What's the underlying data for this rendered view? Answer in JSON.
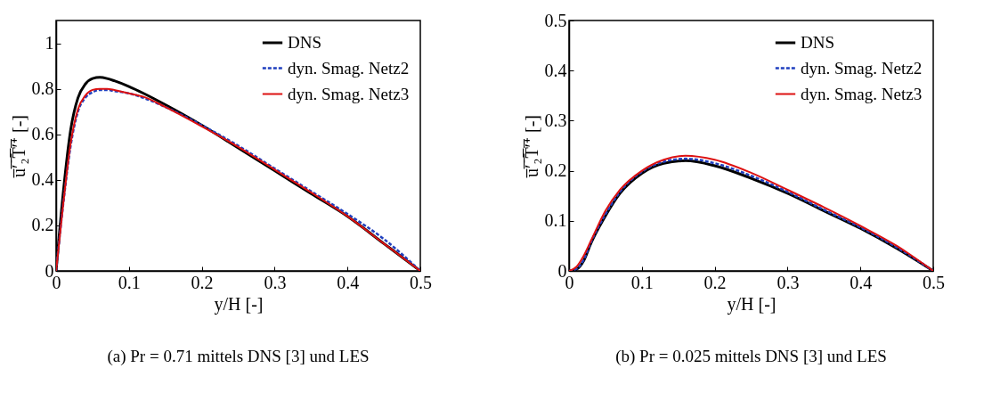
{
  "chart_data": [
    {
      "type": "line",
      "xlabel": "y/H [-]",
      "ylabel": "u̅′̅₂̅T̅′̅⁺ [-]",
      "annotations": [
        "(a) Pr = 0.71 mittels DNS [3] und LES"
      ],
      "x": [
        0,
        0.01,
        0.02,
        0.03,
        0.04,
        0.05,
        0.06,
        0.07,
        0.08,
        0.1,
        0.12,
        0.15,
        0.2,
        0.25,
        0.3,
        0.35,
        0.4,
        0.45,
        0.5
      ],
      "series": [
        {
          "name": "DNS",
          "color": "#000000",
          "line_style": "solid",
          "values": [
            0,
            0.35,
            0.62,
            0.76,
            0.82,
            0.845,
            0.85,
            0.845,
            0.835,
            0.81,
            0.78,
            0.73,
            0.64,
            0.54,
            0.44,
            0.34,
            0.24,
            0.12,
            0
          ]
        },
        {
          "name": "dyn. Smag. Netz2",
          "color": "#1f3fbf",
          "line_style": "dashed",
          "values": [
            0,
            0.3,
            0.55,
            0.7,
            0.76,
            0.785,
            0.795,
            0.795,
            0.79,
            0.78,
            0.76,
            0.72,
            0.64,
            0.55,
            0.45,
            0.35,
            0.25,
            0.14,
            0
          ]
        },
        {
          "name": "dyn. Smag. Netz3",
          "color": "#dd1111",
          "line_style": "solid",
          "values": [
            0,
            0.3,
            0.56,
            0.71,
            0.77,
            0.795,
            0.8,
            0.8,
            0.795,
            0.78,
            0.765,
            0.72,
            0.635,
            0.545,
            0.445,
            0.345,
            0.24,
            0.12,
            0
          ]
        }
      ],
      "xlim": [
        0,
        0.5
      ],
      "xticks": [
        0,
        0.1,
        0.2,
        0.3,
        0.4,
        0.5
      ],
      "ylim": [
        0,
        1.1
      ],
      "yticks": [
        0,
        0.2,
        0.4,
        0.6,
        0.8,
        1
      ],
      "grid": false,
      "legend": "top right",
      "marker": "none"
    },
    {
      "type": "line",
      "xlabel": "y/H [-]",
      "ylabel": "u̅′̅₂̅T̅′̅⁺ [-]",
      "annotations": [
        "(b) Pr = 0.025 mittels DNS [3] und LES"
      ],
      "x": [
        0,
        0.01,
        0.02,
        0.03,
        0.05,
        0.07,
        0.1,
        0.13,
        0.16,
        0.2,
        0.25,
        0.3,
        0.35,
        0.4,
        0.45,
        0.5
      ],
      "series": [
        {
          "name": "DNS",
          "color": "#000000",
          "line_style": "solid",
          "values": [
            0,
            0.003,
            0.02,
            0.055,
            0.11,
            0.155,
            0.195,
            0.215,
            0.22,
            0.21,
            0.185,
            0.155,
            0.12,
            0.085,
            0.045,
            0
          ]
        },
        {
          "name": "dyn. Smag. Netz2",
          "color": "#1f3fbf",
          "line_style": "dashed",
          "values": [
            0,
            0.004,
            0.022,
            0.057,
            0.113,
            0.158,
            0.198,
            0.218,
            0.224,
            0.215,
            0.19,
            0.158,
            0.122,
            0.087,
            0.047,
            0
          ]
        },
        {
          "name": "dyn. Smag. Netz3",
          "color": "#dd1111",
          "line_style": "solid",
          "values": [
            0,
            0.008,
            0.03,
            0.06,
            0.12,
            0.162,
            0.2,
            0.222,
            0.23,
            0.222,
            0.196,
            0.162,
            0.127,
            0.09,
            0.05,
            0
          ]
        }
      ],
      "xlim": [
        0,
        0.5
      ],
      "xticks": [
        0,
        0.1,
        0.2,
        0.3,
        0.4,
        0.5
      ],
      "ylim": [
        0,
        0.5
      ],
      "yticks": [
        0,
        0.1,
        0.2,
        0.3,
        0.4,
        0.5
      ],
      "grid": false,
      "legend": "top right",
      "marker": "none"
    }
  ]
}
